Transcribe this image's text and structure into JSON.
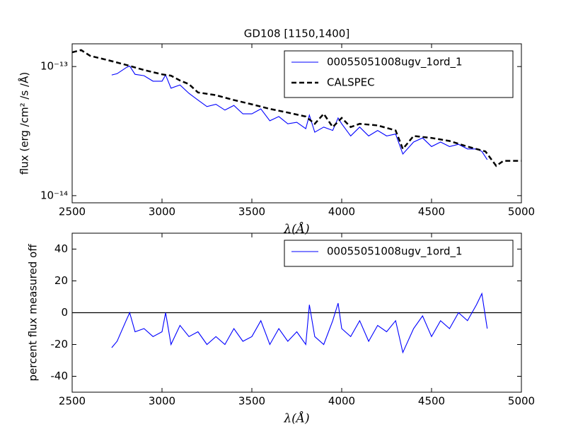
{
  "chart_data": [
    {
      "type": "line",
      "title": "GD108 [1150,1400]",
      "xlabel": "λ(Å)",
      "ylabel": "flux (erg /cm² /s /Å)",
      "log_y": true,
      "legend": "upper right",
      "xlim": [
        2500,
        5000
      ],
      "xticks": [
        2500,
        3000,
        3500,
        4000,
        4500,
        5000
      ],
      "ylim": [
        8.8e-15,
        1.5e-13
      ],
      "yticks": [
        {
          "value": 1e-14,
          "label": "10⁻¹⁴"
        },
        {
          "value": 1e-13,
          "label": "10⁻¹³"
        }
      ],
      "series": [
        {
          "name": "00055051008ugv_1ord_1",
          "color": "#0000ff",
          "style": "solid",
          "x": [
            2720,
            2750,
            2800,
            2820,
            2850,
            2900,
            2950,
            3000,
            3020,
            3050,
            3100,
            3150,
            3200,
            3250,
            3300,
            3350,
            3400,
            3450,
            3500,
            3550,
            3600,
            3650,
            3700,
            3750,
            3800,
            3820,
            3850,
            3900,
            3950,
            3980,
            4000,
            4050,
            4100,
            4150,
            4200,
            4250,
            4300,
            4340,
            4400,
            4450,
            4500,
            4550,
            4600,
            4650,
            4700,
            4750,
            4780,
            4810
          ],
          "values": [
            8.6e-14,
            8.8e-14,
            9.8e-14,
            1.01e-13,
            8.7e-14,
            8.5e-14,
            7.7e-14,
            7.7e-14,
            8.6e-14,
            6.8e-14,
            7.2e-14,
            6.2e-14,
            5.5e-14,
            4.9e-14,
            5.1e-14,
            4.6e-14,
            5e-14,
            4.3e-14,
            4.3e-14,
            4.7e-14,
            3.8e-14,
            4.1e-14,
            3.6e-14,
            3.7e-14,
            3.3e-14,
            4.2e-14,
            3.1e-14,
            3.4e-14,
            3.2e-14,
            4e-14,
            3.6e-14,
            2.9e-14,
            3.4e-14,
            2.9e-14,
            3.2e-14,
            2.9e-14,
            3e-14,
            2.1e-14,
            2.6e-14,
            2.8e-14,
            2.4e-14,
            2.6e-14,
            2.4e-14,
            2.5e-14,
            2.3e-14,
            2.3e-14,
            2.2e-14,
            1.9e-14
          ]
        },
        {
          "name": "CALSPEC",
          "color": "#000000",
          "style": "dashed",
          "x": [
            2500,
            2550,
            2600,
            2700,
            2800,
            2900,
            3000,
            3050,
            3100,
            3150,
            3200,
            3300,
            3400,
            3500,
            3600,
            3700,
            3800,
            3850,
            3900,
            3950,
            4000,
            4050,
            4100,
            4200,
            4300,
            4340,
            4400,
            4500,
            4600,
            4700,
            4800,
            4860,
            4900,
            5000
          ],
          "values": [
            1.29e-13,
            1.34e-13,
            1.21e-13,
            1.12e-13,
            1.03e-13,
            9.4e-14,
            8.7e-14,
            8.5e-14,
            7.8e-14,
            7.3e-14,
            6.3e-14,
            6e-14,
            5.5e-14,
            5.1e-14,
            4.7e-14,
            4.4e-14,
            4.1e-14,
            3.6e-14,
            4.3e-14,
            3.4e-14,
            4e-14,
            3.4e-14,
            3.6e-14,
            3.5e-14,
            3.2e-14,
            2.3e-14,
            2.9e-14,
            2.8e-14,
            2.65e-14,
            2.4e-14,
            2.2e-14,
            1.7e-14,
            1.86e-14,
            1.86e-14
          ]
        }
      ]
    },
    {
      "type": "line",
      "xlabel": "λ(Å)",
      "ylabel": "percent flux measured off",
      "legend": "upper right",
      "xlim": [
        2500,
        5000
      ],
      "xticks": [
        2500,
        3000,
        3500,
        4000,
        4500,
        5000
      ],
      "ylim": [
        -50,
        50
      ],
      "yticks": [
        -40,
        -20,
        0,
        20,
        40
      ],
      "hline": 0,
      "series": [
        {
          "name": "00055051008ugv_1ord_1",
          "color": "#0000ff",
          "style": "solid",
          "x": [
            2720,
            2750,
            2800,
            2820,
            2850,
            2900,
            2950,
            3000,
            3020,
            3050,
            3100,
            3150,
            3200,
            3250,
            3300,
            3350,
            3400,
            3450,
            3500,
            3550,
            3600,
            3650,
            3700,
            3750,
            3800,
            3820,
            3850,
            3900,
            3950,
            3980,
            4000,
            4050,
            4100,
            4150,
            4200,
            4250,
            4300,
            4340,
            4400,
            4450,
            4500,
            4550,
            4600,
            4650,
            4700,
            4750,
            4780,
            4810
          ],
          "values": [
            -22,
            -18,
            -5,
            0,
            -12,
            -10,
            -15,
            -12,
            0,
            -20,
            -8,
            -15,
            -12,
            -20,
            -15,
            -20,
            -10,
            -18,
            -15,
            -5,
            -20,
            -10,
            -18,
            -12,
            -20,
            5,
            -15,
            -20,
            -5,
            6,
            -10,
            -15,
            -5,
            -18,
            -8,
            -12,
            -5,
            -25,
            -10,
            -2,
            -15,
            -5,
            -10,
            0,
            -5,
            5,
            12,
            -10
          ]
        }
      ]
    }
  ]
}
